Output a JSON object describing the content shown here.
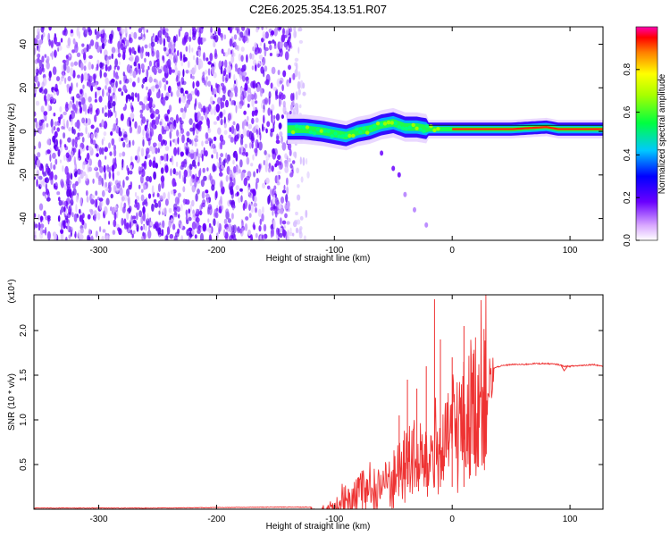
{
  "title": "C2E6.2025.354.13.51.R07",
  "chart_data": [
    {
      "type": "heatmap",
      "xlabel": "Height of straight line (km)",
      "ylabel": "Frequency (Hz)",
      "xlim": [
        -355,
        128
      ],
      "ylim": [
        -50,
        48
      ],
      "xticks": [
        -300,
        -200,
        -100,
        0,
        100
      ],
      "yticks": [
        -40,
        -20,
        0,
        20,
        40
      ],
      "colorbar": {
        "label": "Normalized spectral amplitude",
        "ticks": [
          "0.0",
          "0.2",
          "0.4",
          "0.6",
          "0.8"
        ],
        "range": [
          0,
          1
        ]
      },
      "ridge": [
        {
          "x": -140,
          "y": 1
        },
        {
          "x": -125,
          "y": 1
        },
        {
          "x": -110,
          "y": 0
        },
        {
          "x": -100,
          "y": -1
        },
        {
          "x": -90,
          "y": -2
        },
        {
          "x": -80,
          "y": 0
        },
        {
          "x": -70,
          "y": 1
        },
        {
          "x": -60,
          "y": 3
        },
        {
          "x": -50,
          "y": 4
        },
        {
          "x": -40,
          "y": 2
        },
        {
          "x": -30,
          "y": 2
        },
        {
          "x": -20,
          "y": 1
        },
        {
          "x": -10,
          "y": 1
        },
        {
          "x": 0,
          "y": 1
        },
        {
          "x": 20,
          "y": 1
        },
        {
          "x": 50,
          "y": 1
        },
        {
          "x": 80,
          "y": 2
        },
        {
          "x": 90,
          "y": 1
        },
        {
          "x": 128,
          "y": 1
        }
      ],
      "branch": [
        {
          "x": -60,
          "y": -10
        },
        {
          "x": -50,
          "y": -17
        },
        {
          "x": -45,
          "y": -20
        },
        {
          "x": -40,
          "y": -29
        },
        {
          "x": -32,
          "y": -36
        },
        {
          "x": -22,
          "y": -43
        }
      ]
    },
    {
      "type": "line",
      "xlabel": "Height of straight line (km)",
      "ylabel": "SNR (10 * v/v)",
      "scale_label": "(x10⁴)",
      "xlim": [
        -355,
        128
      ],
      "ylim": [
        0,
        2.4
      ],
      "xticks": [
        -300,
        -200,
        -100,
        0,
        100
      ],
      "yticks": [
        "0.5",
        "1.0",
        "1.5",
        "2.0"
      ],
      "color": "#ee3333",
      "series": [
        {
          "x": [
            -355,
            -300,
            -250,
            -200,
            -150,
            -120,
            -110,
            -100,
            -90,
            -80,
            -70,
            -60,
            -50,
            -45,
            -40,
            -35,
            -30,
            -25,
            -20,
            -15,
            -10,
            -5,
            0,
            5,
            10,
            15,
            20,
            25,
            30,
            40,
            50,
            60,
            70,
            80,
            90,
            95,
            100,
            110,
            120,
            128
          ],
          "y": [
            0.01,
            0.01,
            0.01,
            0.015,
            0.02,
            0.02,
            0.05,
            0.15,
            0.25,
            0.3,
            0.35,
            0.4,
            0.5,
            0.55,
            0.6,
            0.75,
            0.55,
            0.7,
            0.6,
            0.8,
            0.7,
            0.85,
            1.0,
            1.05,
            1.15,
            1.2,
            1.35,
            1.45,
            1.55,
            1.6,
            1.62,
            1.62,
            1.63,
            1.63,
            1.62,
            1.6,
            1.6,
            1.61,
            1.62,
            1.6
          ]
        }
      ],
      "spikes": [
        {
          "x": -45,
          "y": 1.05
        },
        {
          "x": -38,
          "y": 1.45
        },
        {
          "x": -30,
          "y": 1.35
        },
        {
          "x": -22,
          "y": 1.6
        },
        {
          "x": -15,
          "y": 2.35
        },
        {
          "x": -10,
          "y": 1.9
        },
        {
          "x": 0,
          "y": 1.7
        },
        {
          "x": 10,
          "y": 2.05
        }
      ]
    }
  ]
}
